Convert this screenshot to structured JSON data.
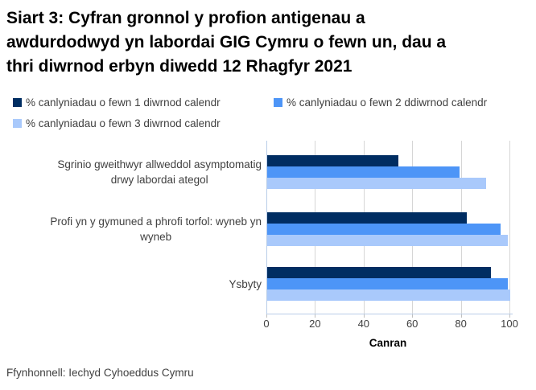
{
  "title_lines": [
    "Siart 3: Cyfran gronnol y profion antigenau a",
    "awdurdodwyd yn labordai GIG Cymru o fewn un, dau a",
    "thri diwrnod erbyn diwedd 12 Rhagfyr 2021"
  ],
  "source": "Ffynhonnell: Iechyd Cyhoeddus Cymru",
  "chart_data": {
    "type": "bar",
    "orientation": "horizontal",
    "title": "Siart 3: Cyfran gronnol y profion antigenau a awdurdodwyd yn labordai GIG Cymru o fewn un, dau a thri diwrnod erbyn diwedd 12 Rhagfyr 2021",
    "xlabel": "Canran",
    "xlim": [
      0,
      100
    ],
    "xticks": [
      0,
      20,
      40,
      60,
      80,
      100
    ],
    "grid": true,
    "legend_position": "top",
    "categories": [
      "Sgrinio gweithwyr allweddol asymptomatig drwy labordai ategol",
      "Profi yn y gymuned a phrofi torfol: wyneb yn wyneb",
      "Ysbyty"
    ],
    "category_lines": [
      [
        "Sgrinio gweithwyr allweddol asymptomatig",
        "drwy labordai ategol"
      ],
      [
        "Profi yn y gymuned a phrofi torfol: wyneb yn",
        "wyneb"
      ],
      [
        "Ysbyty"
      ]
    ],
    "series": [
      {
        "name": "% canlyniadau o fewn 1 diwrnod calendr",
        "color": "#002D62",
        "values": [
          54,
          82,
          92
        ]
      },
      {
        "name": "% canlyniadau o fewn 2 ddiwrnod calendr",
        "color": "#4D95F7",
        "values": [
          79,
          96,
          99
        ]
      },
      {
        "name": "% canlyniadau o fewn 3 diwrnod calendr",
        "color": "#A9C9FB",
        "values": [
          90,
          99,
          100
        ]
      }
    ]
  }
}
